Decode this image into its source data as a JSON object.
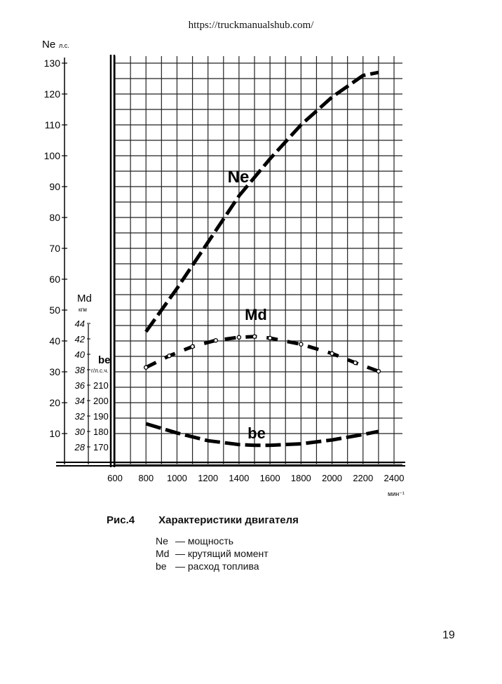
{
  "header": {
    "url": "https://truckmanualshub.com/"
  },
  "caption": {
    "figure": "Рис.4",
    "title": "Характеристики двигателя",
    "legend": [
      {
        "symbol": "Ne",
        "text": "— мощность"
      },
      {
        "symbol": "Md",
        "text": "— крутящий момент"
      },
      {
        "symbol": "be",
        "text": "— расход топлива"
      }
    ]
  },
  "page_number": "19",
  "chart_data": {
    "type": "line",
    "x_unit": "мин⁻¹",
    "x_ticks": [
      "600",
      "800",
      "1000",
      "1200",
      "1400",
      "1600",
      "1800",
      "2000",
      "2200",
      "2400"
    ],
    "xlim": [
      600,
      2400
    ],
    "grid": true,
    "axes": {
      "Ne": {
        "label": "Ne",
        "unit": "л.с.",
        "ticks": [
          "10",
          "20",
          "30",
          "40",
          "50",
          "60",
          "70",
          "80",
          "90",
          "100",
          "110",
          "120",
          "130"
        ],
        "ylim": [
          10,
          130
        ]
      },
      "Md": {
        "label": "Md",
        "unit": "кгм",
        "ticks": [
          "28",
          "30",
          "32",
          "34",
          "36",
          "38",
          "40",
          "42",
          "44"
        ],
        "ylim": [
          28,
          44
        ]
      },
      "be": {
        "label": "be",
        "unit": "г/л.с.ч.",
        "ticks": [
          "170",
          "180",
          "190",
          "200",
          "210"
        ],
        "ylim": [
          170,
          210
        ]
      }
    },
    "series": [
      {
        "name": "Ne",
        "axis": "Ne",
        "style": "dashed",
        "x": [
          800,
          1000,
          1200,
          1400,
          1600,
          1800,
          2000,
          2200,
          2300
        ],
        "y": [
          43,
          57,
          72,
          87,
          99,
          110,
          119,
          126,
          127
        ]
      },
      {
        "name": "Md",
        "axis": "Md",
        "style": "dash-dot-circles",
        "x": [
          800,
          950,
          1100,
          1250,
          1400,
          1500,
          1600,
          1800,
          2000,
          2150,
          2300
        ],
        "y": [
          38.3,
          39.8,
          41.0,
          41.8,
          42.2,
          42.3,
          42.1,
          41.3,
          40.1,
          38.9,
          37.8
        ]
      },
      {
        "name": "be",
        "axis": "be",
        "style": "dashed",
        "x": [
          800,
          1000,
          1200,
          1400,
          1500,
          1600,
          1800,
          2000,
          2200,
          2300
        ],
        "y": [
          185,
          179,
          174,
          171.5,
          171,
          171,
          172,
          174.5,
          178,
          180
        ]
      }
    ]
  }
}
